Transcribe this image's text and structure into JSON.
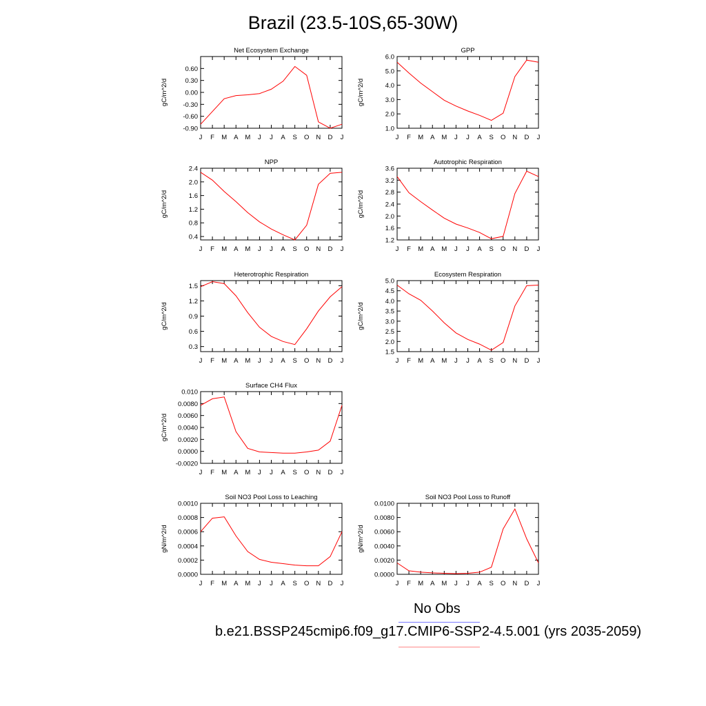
{
  "title": "Brazil (23.5-10S,65-30W)",
  "legend": {
    "obs_label": "No Obs",
    "case_label": "b.e21.BSSP245cmip6.f09_g17.CMIP6-SSP2-4.5.001 (yrs 2035-2059)",
    "obs_color": "#7777ff",
    "case_color": "#ff8888"
  },
  "colors": {
    "line": "#ff0000",
    "axis": "#000000"
  },
  "chart_data": [
    {
      "type": "line",
      "title": "Net Ecosystem Exchange",
      "ylabel": "gC/m^2/d",
      "categories": [
        "J",
        "F",
        "M",
        "A",
        "M",
        "J",
        "J",
        "A",
        "S",
        "O",
        "N",
        "D",
        "J"
      ],
      "ylim": [
        -0.9,
        0.9
      ],
      "yticks": [
        -0.9,
        -0.6,
        -0.3,
        0.0,
        0.3,
        0.6
      ],
      "ytick_labels": [
        "-0.90",
        "-0.60",
        "-0.30",
        "0.00",
        "0.30",
        "0.60"
      ],
      "values": [
        -0.8,
        -0.48,
        -0.16,
        -0.08,
        -0.06,
        -0.03,
        0.08,
        0.28,
        0.65,
        0.43,
        -0.74,
        -0.9,
        -0.8
      ]
    },
    {
      "type": "line",
      "title": "GPP",
      "ylabel": "gC/m^2/d",
      "categories": [
        "J",
        "F",
        "M",
        "A",
        "M",
        "J",
        "J",
        "A",
        "S",
        "O",
        "N",
        "D",
        "J"
      ],
      "ylim": [
        1.0,
        6.0
      ],
      "yticks": [
        1.0,
        2.0,
        3.0,
        4.0,
        5.0,
        6.0
      ],
      "ytick_labels": [
        "1.0",
        "2.0",
        "3.0",
        "4.0",
        "5.0",
        "6.0"
      ],
      "values": [
        5.6,
        4.85,
        4.15,
        3.55,
        2.95,
        2.55,
        2.2,
        1.9,
        1.55,
        2.05,
        4.6,
        5.75,
        5.6
      ]
    },
    {
      "type": "line",
      "title": "NPP",
      "ylabel": "gC/m^2/d",
      "categories": [
        "J",
        "F",
        "M",
        "A",
        "M",
        "J",
        "J",
        "A",
        "S",
        "O",
        "N",
        "D",
        "J"
      ],
      "ylim": [
        0.3,
        2.4
      ],
      "yticks": [
        0.4,
        0.8,
        1.2,
        1.6,
        2.0,
        2.4
      ],
      "ytick_labels": [
        "0.4",
        "0.8",
        "1.2",
        "1.6",
        "2.0",
        "2.4"
      ],
      "values": [
        2.28,
        2.05,
        1.72,
        1.42,
        1.1,
        0.83,
        0.62,
        0.45,
        0.3,
        0.73,
        1.93,
        2.25,
        2.28
      ]
    },
    {
      "type": "line",
      "title": "Autotrophic Respiration",
      "ylabel": "gC/m^2/d",
      "categories": [
        "J",
        "F",
        "M",
        "A",
        "M",
        "J",
        "J",
        "A",
        "S",
        "O",
        "N",
        "D",
        "J"
      ],
      "ylim": [
        1.2,
        3.6
      ],
      "yticks": [
        1.2,
        1.6,
        2.0,
        2.4,
        2.8,
        3.2,
        3.6
      ],
      "ytick_labels": [
        "1.2",
        "1.6",
        "2.0",
        "2.4",
        "2.8",
        "3.2",
        "3.6"
      ],
      "values": [
        3.32,
        2.78,
        2.48,
        2.2,
        1.93,
        1.73,
        1.6,
        1.45,
        1.24,
        1.32,
        2.75,
        3.5,
        3.32
      ]
    },
    {
      "type": "line",
      "title": "Heterotrophic Respiration",
      "ylabel": "gC/m^2/d",
      "categories": [
        "J",
        "F",
        "M",
        "A",
        "M",
        "J",
        "J",
        "A",
        "S",
        "O",
        "N",
        "D",
        "J"
      ],
      "ylim": [
        0.2,
        1.6
      ],
      "yticks": [
        0.3,
        0.6,
        0.9,
        1.2,
        1.5
      ],
      "ytick_labels": [
        "0.3",
        "0.6",
        "0.9",
        "1.2",
        "1.5"
      ],
      "values": [
        1.48,
        1.58,
        1.54,
        1.3,
        0.97,
        0.68,
        0.5,
        0.4,
        0.34,
        0.65,
        1.0,
        1.28,
        1.48
      ]
    },
    {
      "type": "line",
      "title": "Ecosystem Respiration",
      "ylabel": "gC/m^2/d",
      "categories": [
        "J",
        "F",
        "M",
        "A",
        "M",
        "J",
        "J",
        "A",
        "S",
        "O",
        "N",
        "D",
        "J"
      ],
      "ylim": [
        1.5,
        5.0
      ],
      "yticks": [
        1.5,
        2.0,
        2.5,
        3.0,
        3.5,
        4.0,
        4.5,
        5.0
      ],
      "ytick_labels": [
        "1.5",
        "2.0",
        "2.5",
        "3.0",
        "3.5",
        "4.0",
        "4.5",
        "5.0"
      ],
      "values": [
        4.78,
        4.35,
        4.03,
        3.5,
        2.92,
        2.42,
        2.1,
        1.87,
        1.57,
        1.95,
        3.75,
        4.75,
        4.78
      ]
    },
    {
      "type": "line",
      "title": "Surface CH4 Flux",
      "ylabel": "gC/m^2/d",
      "categories": [
        "J",
        "F",
        "M",
        "A",
        "M",
        "J",
        "J",
        "A",
        "S",
        "O",
        "N",
        "D",
        "J"
      ],
      "ylim": [
        -0.002,
        0.01
      ],
      "yticks": [
        -0.002,
        0.0,
        0.002,
        0.004,
        0.006,
        0.008,
        0.01
      ],
      "ytick_labels": [
        "-0.0020",
        "0.0000",
        "0.0020",
        "0.0040",
        "0.0060",
        "0.0080",
        "0.010"
      ],
      "values": [
        0.0077,
        0.0088,
        0.0091,
        0.0033,
        0.0005,
        -0.0001,
        -0.0002,
        -0.0003,
        -0.0003,
        -0.0001,
        0.0002,
        0.0017,
        0.0077
      ]
    },
    {
      "type": "line",
      "title": "Soil NO3 Pool Loss to Leaching",
      "ylabel": "gN/m^2/d",
      "categories": [
        "J",
        "F",
        "M",
        "A",
        "M",
        "J",
        "J",
        "A",
        "S",
        "O",
        "N",
        "D",
        "J"
      ],
      "ylim": [
        0.0,
        0.001
      ],
      "yticks": [
        0.0,
        0.0002,
        0.0004,
        0.0006,
        0.0008,
        0.001
      ],
      "ytick_labels": [
        "0.0000",
        "0.0002",
        "0.0004",
        "0.0006",
        "0.0008",
        "0.0010"
      ],
      "values": [
        0.0006,
        0.00079,
        0.00081,
        0.00054,
        0.00032,
        0.00021,
        0.00017,
        0.00015,
        0.00013,
        0.00012,
        0.00012,
        0.00025,
        0.0006
      ]
    },
    {
      "type": "line",
      "title": "Soil NO3 Pool Loss to Runoff",
      "ylabel": "gN/m^2/d",
      "categories": [
        "J",
        "F",
        "M",
        "A",
        "M",
        "J",
        "J",
        "A",
        "S",
        "O",
        "N",
        "D",
        "J"
      ],
      "ylim": [
        0.0,
        0.01
      ],
      "yticks": [
        0.0,
        0.002,
        0.004,
        0.006,
        0.008,
        0.01
      ],
      "ytick_labels": [
        "0.0000",
        "0.0020",
        "0.0040",
        "0.0060",
        "0.0080",
        "0.0100"
      ],
      "values": [
        0.0016,
        0.0005,
        0.0003,
        0.0002,
        0.00015,
        0.0001,
        0.00015,
        0.0003,
        0.001,
        0.0064,
        0.0092,
        0.005,
        0.0016
      ]
    }
  ]
}
